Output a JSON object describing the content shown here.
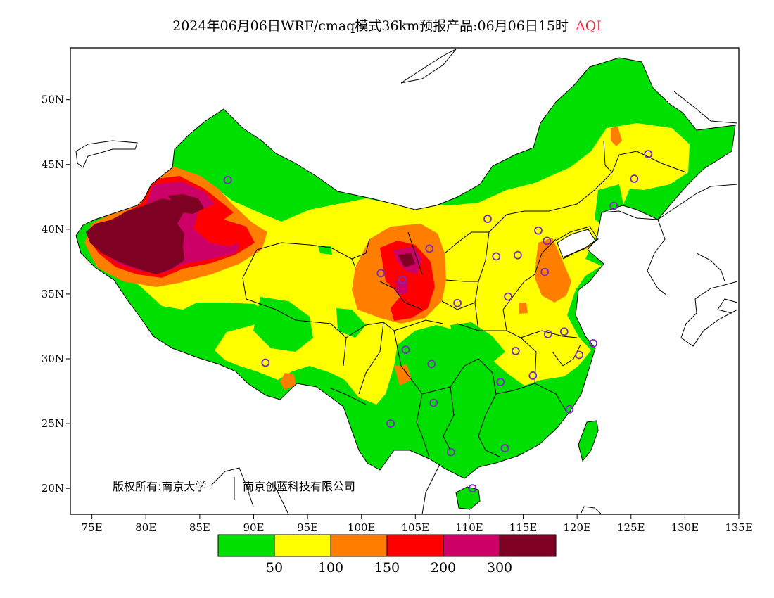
{
  "title": {
    "main": "2024年06月06日WRF/cmaq模式36km预报产品:06月06日15时",
    "variable": "AQI"
  },
  "map": {
    "lon_range": [
      73,
      135
    ],
    "lat_range": [
      18,
      54
    ],
    "lon_ticks": [
      {
        "value": 75,
        "label": "75E"
      },
      {
        "value": 80,
        "label": "80E"
      },
      {
        "value": 85,
        "label": "85E"
      },
      {
        "value": 90,
        "label": "90E"
      },
      {
        "value": 95,
        "label": "95E"
      },
      {
        "value": 100,
        "label": "100E"
      },
      {
        "value": 105,
        "label": "105E"
      },
      {
        "value": 110,
        "label": "110E"
      },
      {
        "value": 115,
        "label": "115E"
      },
      {
        "value": 120,
        "label": "120E"
      },
      {
        "value": 125,
        "label": "125E"
      },
      {
        "value": 130,
        "label": "130E"
      },
      {
        "value": 135,
        "label": "135E"
      }
    ],
    "lat_ticks": [
      {
        "value": 20,
        "label": "20N"
      },
      {
        "value": 25,
        "label": "25N"
      },
      {
        "value": 30,
        "label": "30N"
      },
      {
        "value": 35,
        "label": "35N"
      },
      {
        "value": 40,
        "label": "40N"
      },
      {
        "value": 45,
        "label": "45N"
      },
      {
        "value": 50,
        "label": "50N"
      }
    ],
    "copyright": "版权所有:南京大学",
    "copyright2": "南京创蓝科技有限公司",
    "station_color": "#7a2cc0",
    "stations": [
      [
        87.6,
        43.8
      ],
      [
        91.1,
        29.7
      ],
      [
        101.8,
        36.6
      ],
      [
        103.8,
        36.1
      ],
      [
        106.3,
        38.5
      ],
      [
        104.1,
        30.7
      ],
      [
        106.5,
        29.6
      ],
      [
        106.7,
        26.6
      ],
      [
        102.7,
        25.0
      ],
      [
        108.3,
        22.8
      ],
      [
        110.3,
        20.0
      ],
      [
        113.3,
        23.1
      ],
      [
        112.9,
        28.2
      ],
      [
        115.9,
        28.7
      ],
      [
        114.3,
        30.6
      ],
      [
        117.3,
        31.9
      ],
      [
        118.8,
        32.1
      ],
      [
        120.2,
        30.3
      ],
      [
        121.5,
        31.2
      ],
      [
        119.3,
        26.1
      ],
      [
        113.6,
        34.8
      ],
      [
        108.9,
        34.3
      ],
      [
        117.0,
        36.7
      ],
      [
        114.5,
        38.0
      ],
      [
        112.5,
        37.9
      ],
      [
        111.7,
        40.8
      ],
      [
        116.4,
        39.9
      ],
      [
        117.2,
        39.1
      ],
      [
        123.4,
        41.8
      ],
      [
        125.3,
        43.9
      ],
      [
        126.6,
        45.8
      ]
    ]
  },
  "legend": {
    "colors": [
      "#00e000",
      "#ffff00",
      "#ff7e00",
      "#ff0000",
      "#cc0066",
      "#7e0023"
    ],
    "labels": [
      "50",
      "100",
      "150",
      "200",
      "300"
    ]
  }
}
